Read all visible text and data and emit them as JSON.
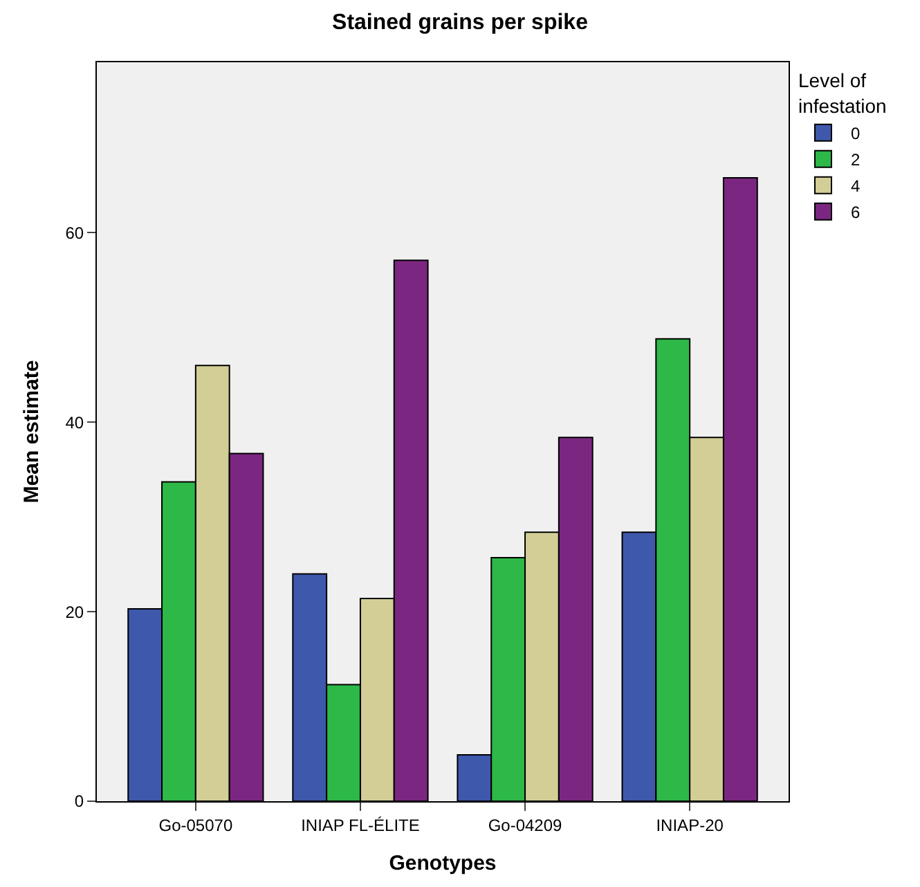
{
  "chart_data": {
    "type": "bar",
    "title": "Stained grains per spike",
    "xlabel": "Genotypes",
    "ylabel": "Mean estimate",
    "legend_title": "Level of infestation",
    "categories": [
      "Go-05070",
      "INIAP FL-ÉLITE",
      "Go-04209",
      "INIAP-20"
    ],
    "series": [
      {
        "name": "0",
        "color": "#3e58ac",
        "values": [
          20.3,
          24.0,
          4.9,
          28.4
        ]
      },
      {
        "name": "2",
        "color": "#2eb848",
        "values": [
          33.7,
          12.3,
          25.7,
          48.8
        ]
      },
      {
        "name": "4",
        "color": "#d2ce96",
        "values": [
          46.0,
          21.4,
          28.4,
          38.4
        ]
      },
      {
        "name": "6",
        "color": "#7b2781",
        "values": [
          36.7,
          57.1,
          38.4,
          65.8
        ]
      }
    ],
    "ylim": [
      0,
      78
    ],
    "yticks": [
      0,
      20,
      40,
      60
    ],
    "grid": false,
    "legend": "top right"
  }
}
